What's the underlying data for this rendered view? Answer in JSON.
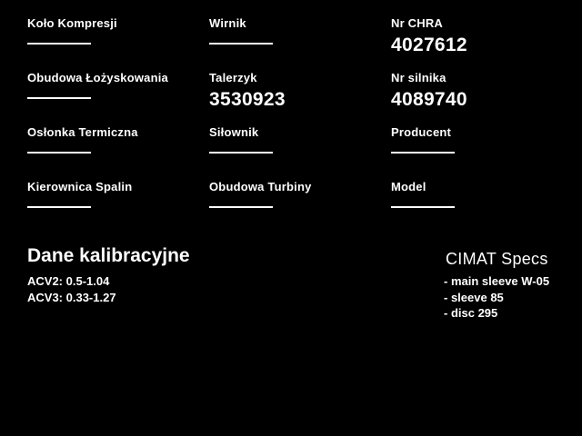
{
  "window": {
    "background_color": "#000000",
    "text_color": "#ffffff"
  },
  "fields": [
    {
      "id": "kolo-kompresji",
      "label": "Koło Kompresji",
      "value": ""
    },
    {
      "id": "wirnik",
      "label": "Wirnik",
      "value": ""
    },
    {
      "id": "nr-chra",
      "label": "Nr CHRA",
      "value": "4027612"
    },
    {
      "id": "obudowa-lozyskowania",
      "label": "Obudowa Łożyskowania",
      "value": ""
    },
    {
      "id": "talerzyk",
      "label": "Talerzyk",
      "value": "3530923"
    },
    {
      "id": "nr-silnika",
      "label": "Nr silnika",
      "value": "4089740"
    },
    {
      "id": "oslonka-termiczna",
      "label": "Osłonka Termiczna",
      "value": ""
    },
    {
      "id": "silownik",
      "label": "Siłownik",
      "value": ""
    },
    {
      "id": "producent",
      "label": "Producent",
      "value": ""
    },
    {
      "id": "kierownica-spalin",
      "label": "Kierownica Spalin",
      "value": ""
    },
    {
      "id": "obudowa-turbiny",
      "label": "Obudowa Turbiny",
      "value": ""
    },
    {
      "id": "model",
      "label": "Model",
      "value": ""
    }
  ],
  "calibration": {
    "title": "Dane kalibracyjne",
    "lines": [
      "ACV2: 0.5-1.04",
      "ACV3: 0.33-1.27"
    ]
  },
  "specs": {
    "title": "CIMAT Specs",
    "lines": [
      "- main sleeve W-05",
      "- sleeve 85",
      "- disc 295"
    ]
  }
}
